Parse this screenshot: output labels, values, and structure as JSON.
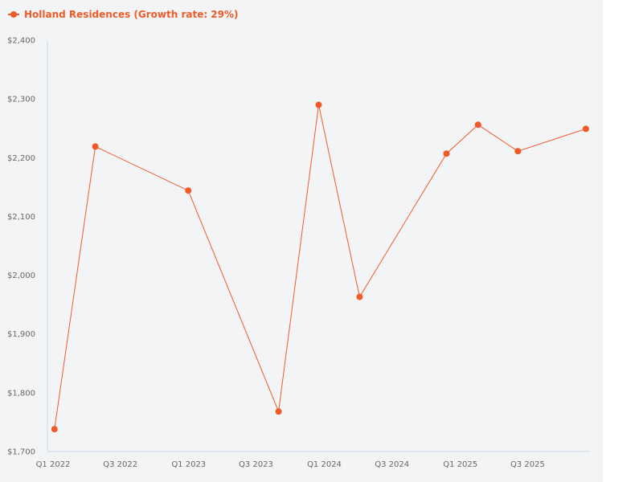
{
  "legend": {
    "label": "Holland Residences (Growth rate: 29%)"
  },
  "colors": {
    "series": "#f05a28",
    "axis": "#ccd6eb",
    "background": "#f3f4f6"
  },
  "chart_data": {
    "type": "line",
    "title": "",
    "xlabel": "",
    "ylabel": "",
    "grid": false,
    "legend_position": "top-left",
    "y_ticks": [
      "$1,700",
      "$1,800",
      "$1,900",
      "$2,000",
      "$2,100",
      "$2,200",
      "$2,300",
      "$2,400"
    ],
    "y_tick_values": [
      1700,
      1800,
      1900,
      2000,
      2100,
      2200,
      2300,
      2400
    ],
    "x_ticks": [
      "Q1 2022",
      "Q3 2022",
      "Q1 2023",
      "Q3 2023",
      "Q1 2024",
      "Q3 2024",
      "Q1 2025",
      "Q3 2025"
    ],
    "x_tick_dates": [
      "2022-01-01",
      "2022-07-01",
      "2023-01-01",
      "2023-07-01",
      "2024-01-01",
      "2024-07-01",
      "2025-01-01",
      "2025-07-01"
    ],
    "ylim": [
      1700,
      2400
    ],
    "xlim": [
      "2022-01-01",
      "2025-12-31"
    ],
    "series": [
      {
        "name": "Holland Residences (Growth rate: 29%)",
        "color": "#f05a28",
        "points": [
          {
            "x": "2022-01-20",
            "y": 1738
          },
          {
            "x": "2022-05-10",
            "y": 2219
          },
          {
            "x": "2023-01-15",
            "y": 2144
          },
          {
            "x": "2023-09-15",
            "y": 1768
          },
          {
            "x": "2024-01-01",
            "y": 2290
          },
          {
            "x": "2024-04-20",
            "y": 1963
          },
          {
            "x": "2024-12-10",
            "y": 2207
          },
          {
            "x": "2025-03-05",
            "y": 2256
          },
          {
            "x": "2025-06-20",
            "y": 2211
          },
          {
            "x": "2025-12-20",
            "y": 2249
          }
        ]
      }
    ]
  }
}
